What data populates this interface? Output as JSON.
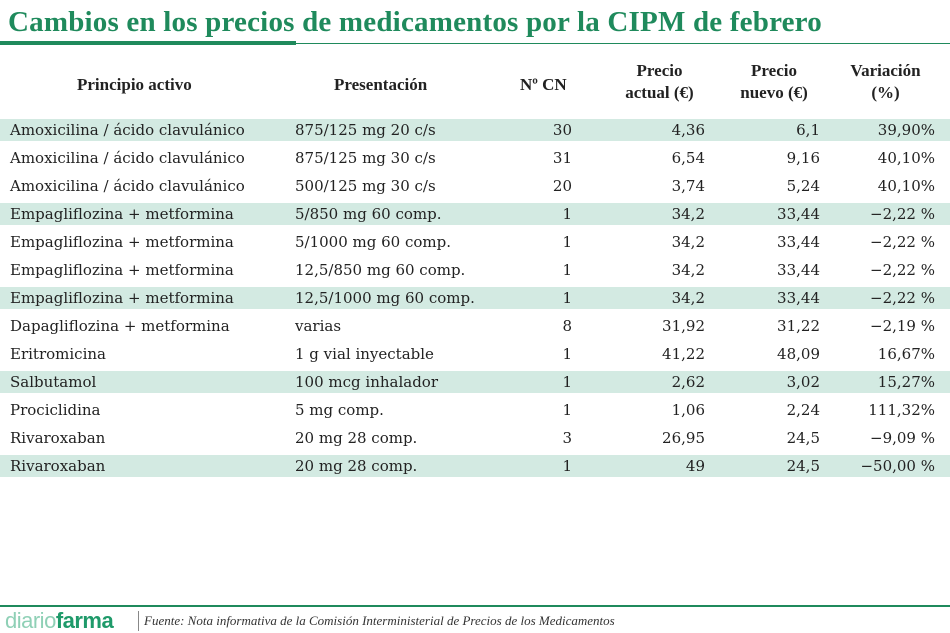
{
  "title": "Cambios en los precios de medicamentos por la CIPM de febrero",
  "colors": {
    "accent": "#1f8a5c",
    "row_shade": "#d3eae2"
  },
  "chart_data": {
    "type": "table",
    "columns": [
      "Principio activo",
      "Presentación",
      "Nº CN",
      "Precio actual (€)",
      "Precio nuevo (€)",
      "Variación (%)"
    ],
    "header_lines": [
      [
        "Principio activo"
      ],
      [
        "Presentación"
      ],
      [
        "Nº CN"
      ],
      [
        "Precio",
        "actual (€)"
      ],
      [
        "Precio",
        "nuevo (€)"
      ],
      [
        "Variación",
        "(%)"
      ]
    ],
    "rows": [
      [
        "Amoxicilina / ácido clavulánico",
        "875/125 mg 20 c/s",
        "30",
        "4,36",
        "6,1",
        "39,90%"
      ],
      [
        "Amoxicilina / ácido clavulánico",
        "875/125 mg 30 c/s",
        "31",
        "6,54",
        "9,16",
        "40,10%"
      ],
      [
        "Amoxicilina / ácido clavulánico",
        "500/125 mg 30 c/s",
        "20",
        "3,74",
        "5,24",
        "40,10%"
      ],
      [
        "Empagliflozina + metformina",
        "5/850 mg 60 comp.",
        "1",
        "34,2",
        "33,44",
        "−2,22 %"
      ],
      [
        "Empagliflozina + metformina",
        "5/1000 mg 60 comp.",
        "1",
        "34,2",
        "33,44",
        "−2,22 %"
      ],
      [
        "Empagliflozina + metformina",
        "12,5/850 mg 60 comp.",
        "1",
        "34,2",
        "33,44",
        "−2,22 %"
      ],
      [
        "Empagliflozina + metformina",
        "12,5/1000 mg 60 comp.",
        "1",
        "34,2",
        "33,44",
        "−2,22 %"
      ],
      [
        "Dapagliflozina + metformina",
        "varias",
        "8",
        "31,92",
        "31,22",
        "−2,19 %"
      ],
      [
        "Eritromicina",
        "1 g vial inyectable",
        "1",
        "41,22",
        "48,09",
        "16,67%"
      ],
      [
        "Salbutamol",
        "100 mcg inhalador",
        "1",
        "2,62",
        "3,02",
        "15,27%"
      ],
      [
        "Prociclidina",
        "5 mg comp.",
        "1",
        "1,06",
        "2,24",
        "111,32%"
      ],
      [
        "Rivaroxaban",
        "20 mg 28 comp.",
        "3",
        "26,95",
        "24,5",
        "−9,09 %"
      ],
      [
        "Rivaroxaban",
        "20 mg 28 comp.",
        "1",
        "49",
        "24,5",
        "−50,00 %"
      ]
    ]
  },
  "footer": {
    "logo_light": "diario",
    "logo_bold": "farma",
    "source": "Fuente: Nota informativa de la Comisión Interministerial de Precios de los Medicamentos"
  }
}
